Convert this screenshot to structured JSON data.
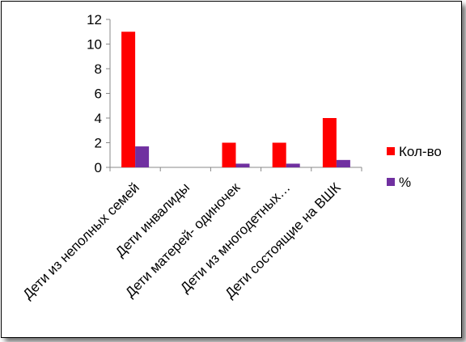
{
  "chart_data": {
    "type": "bar",
    "categories": [
      "Дети из неполных семей",
      "Дети инвалиды",
      "Дети матерей- одиночек",
      "Дети  из многодетных…",
      "Дети  состоящие на ВШК"
    ],
    "series": [
      {
        "name": "Кол-во",
        "values": [
          11,
          0,
          2,
          2,
          4
        ],
        "color": "#ff0000"
      },
      {
        "name": "%",
        "values": [
          1.7,
          0,
          0.3,
          0.3,
          0.6
        ],
        "color": "#7030a0"
      }
    ],
    "yticks": [
      "0",
      "2",
      "4",
      "6",
      "8",
      "10",
      "12"
    ],
    "ylim": [
      0,
      12
    ],
    "grid": false,
    "legend_position": "right",
    "title": "",
    "xlabel": "",
    "ylabel": ""
  }
}
